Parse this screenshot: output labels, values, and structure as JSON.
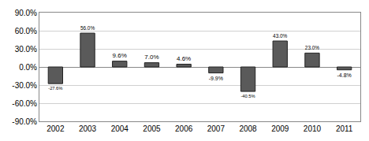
{
  "chart_data": {
    "type": "bar",
    "categories": [
      "2002",
      "2003",
      "2004",
      "2005",
      "2006",
      "2007",
      "2008",
      "2009",
      "2010",
      "2011"
    ],
    "values": [
      -27.6,
      56.0,
      9.6,
      7.0,
      4.6,
      -9.9,
      -40.5,
      43.0,
      23.0,
      -4.8
    ],
    "value_labels": [
      "-27.6%",
      "56.0%",
      "9.6%",
      "7.0%",
      "4.6%",
      "-9.9%",
      "-40.5%",
      "43.0%",
      "23.0%",
      "-4.8%"
    ],
    "color": "#5a5a5a",
    "ylim": [
      -90,
      90
    ],
    "yticks": [
      {
        "value": -90,
        "label": "-90.0%"
      },
      {
        "value": -60,
        "label": "-60.0%"
      },
      {
        "value": -30,
        "label": "-30.0%"
      },
      {
        "value": 0,
        "label": "0.0%"
      },
      {
        "value": 30,
        "label": "30.0%"
      },
      {
        "value": 60,
        "label": "60.0%"
      },
      {
        "value": 90,
        "label": "90.0%"
      }
    ],
    "grid": true,
    "data_labels": true
  }
}
